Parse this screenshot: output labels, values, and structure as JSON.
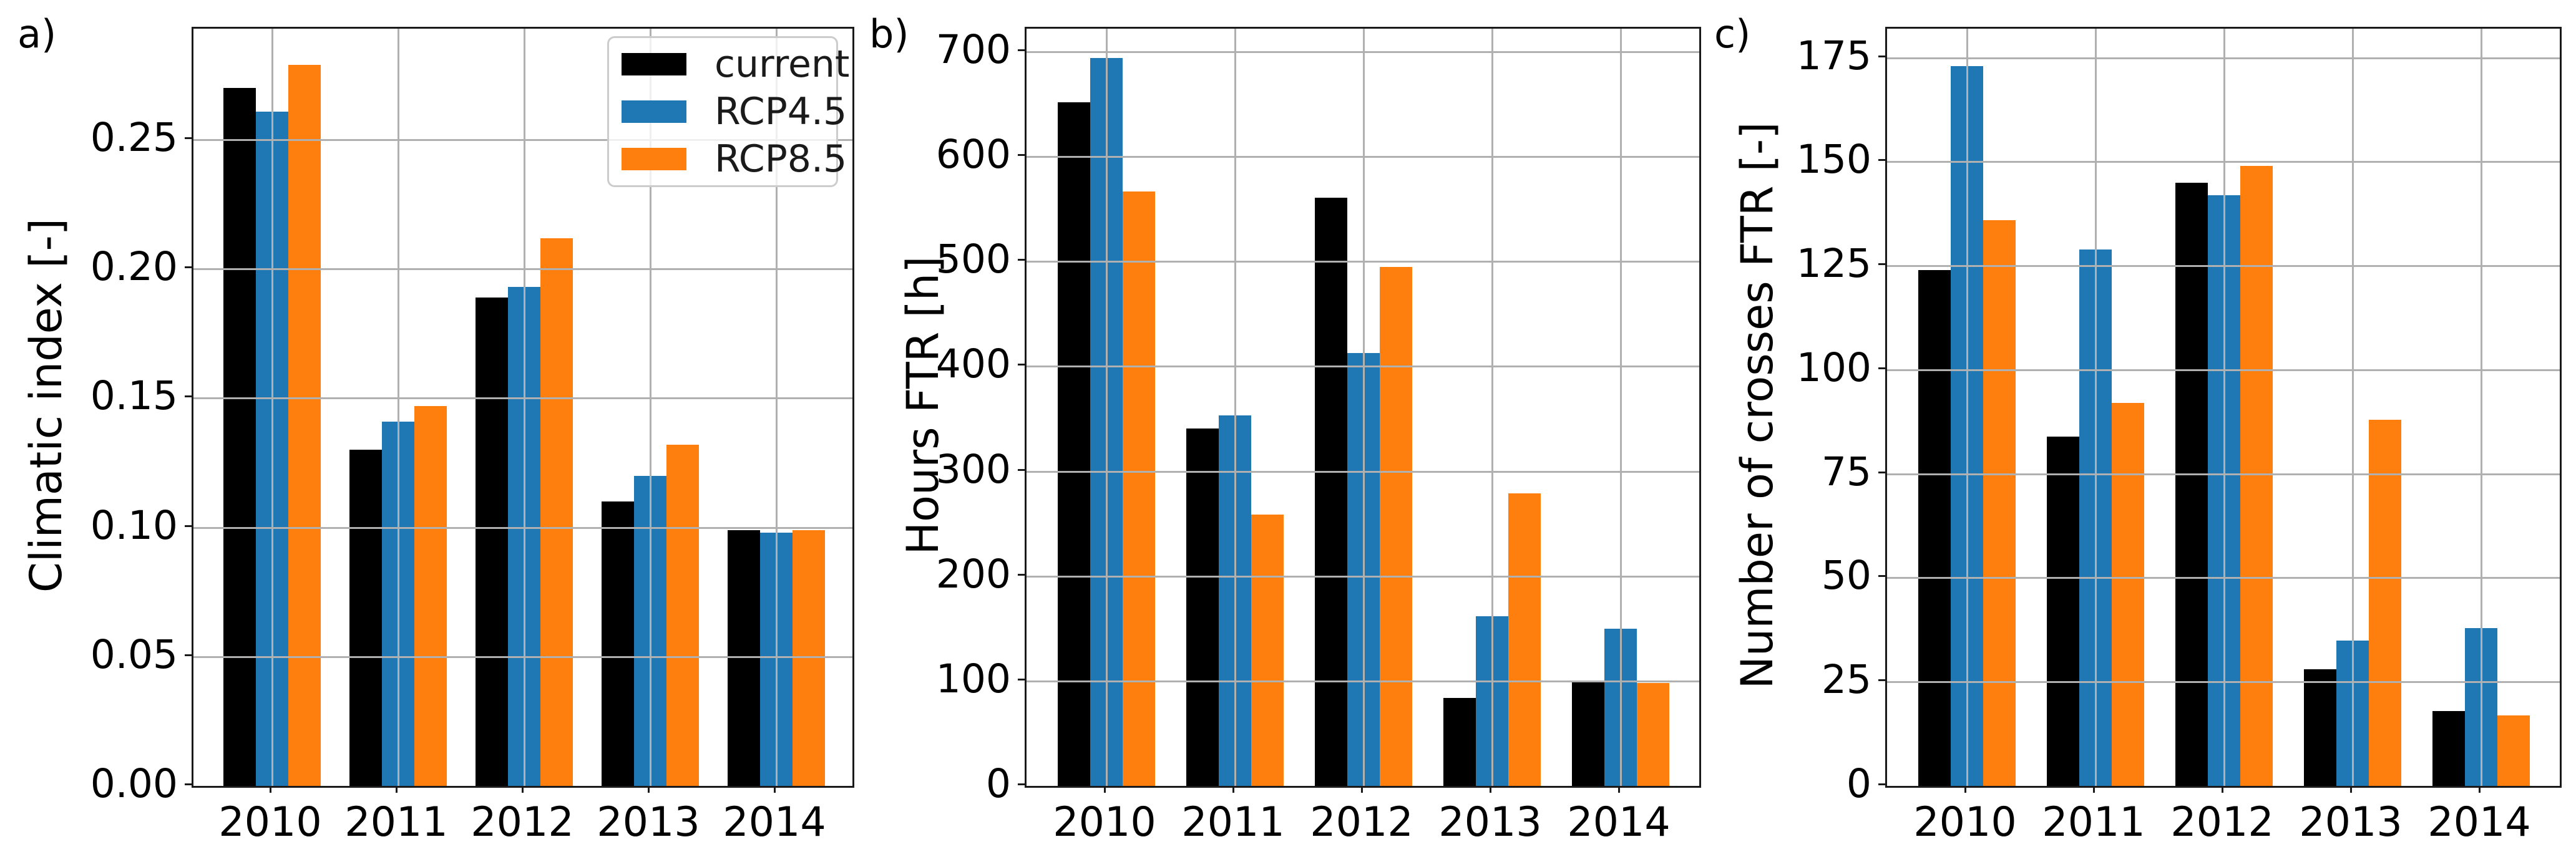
{
  "legend": {
    "items": [
      {
        "label": "current",
        "color": "#000000"
      },
      {
        "label": "RCP4.5",
        "color": "#1f77b4"
      },
      {
        "label": "RCP8.5",
        "color": "#ff7f0e"
      }
    ]
  },
  "chart_data": [
    {
      "type": "bar",
      "panel_label": "a)",
      "title": "",
      "xlabel": "",
      "ylabel": "Climatic index [-]",
      "categories": [
        "2010",
        "2011",
        "2012",
        "2013",
        "2014"
      ],
      "series": [
        {
          "name": "current",
          "color": "#000000",
          "values": [
            0.27,
            0.13,
            0.189,
            0.11,
            0.099
          ]
        },
        {
          "name": "RCP4.5",
          "color": "#1f77b4",
          "values": [
            0.261,
            0.141,
            0.193,
            0.12,
            0.098
          ]
        },
        {
          "name": "RCP8.5",
          "color": "#ff7f0e",
          "values": [
            0.279,
            0.147,
            0.212,
            0.132,
            0.099
          ]
        }
      ],
      "ylim": [
        0,
        0.293
      ],
      "yticks": [
        0,
        0.05,
        0.1,
        0.15,
        0.2,
        0.25
      ],
      "ytick_labels": [
        "0.00",
        "0.05",
        "0.10",
        "0.15",
        "0.20",
        "0.25"
      ],
      "grid": true,
      "legend_position": "upper right"
    },
    {
      "type": "bar",
      "panel_label": "b)",
      "title": "",
      "xlabel": "",
      "ylabel": "Hours FTR [h]",
      "categories": [
        "2010",
        "2011",
        "2012",
        "2013",
        "2014"
      ],
      "series": [
        {
          "name": "current",
          "color": "#000000",
          "values": [
            652,
            341,
            561,
            84,
            99
          ]
        },
        {
          "name": "RCP4.5",
          "color": "#1f77b4",
          "values": [
            694,
            353,
            413,
            162,
            150
          ]
        },
        {
          "name": "RCP8.5",
          "color": "#ff7f0e",
          "values": [
            567,
            259,
            495,
            279,
            98
          ]
        }
      ],
      "ylim": [
        0,
        722
      ],
      "yticks": [
        0,
        100,
        200,
        300,
        400,
        500,
        600,
        700
      ],
      "ytick_labels": [
        "0",
        "100",
        "200",
        "300",
        "400",
        "500",
        "600",
        "700"
      ],
      "grid": true,
      "legend_position": "none"
    },
    {
      "type": "bar",
      "panel_label": "c)",
      "title": "",
      "xlabel": "",
      "ylabel": "Number of crosses FTR [-]",
      "categories": [
        "2010",
        "2011",
        "2012",
        "2013",
        "2014"
      ],
      "series": [
        {
          "name": "current",
          "color": "#000000",
          "values": [
            124,
            84,
            145,
            28,
            18
          ]
        },
        {
          "name": "RCP4.5",
          "color": "#1f77b4",
          "values": [
            173,
            129,
            142,
            35,
            38
          ]
        },
        {
          "name": "RCP8.5",
          "color": "#ff7f0e",
          "values": [
            136,
            92,
            149,
            88,
            17
          ]
        }
      ],
      "ylim": [
        0,
        182
      ],
      "yticks": [
        0,
        25,
        50,
        75,
        100,
        125,
        150,
        175
      ],
      "ytick_labels": [
        "0",
        "25",
        "50",
        "75",
        "100",
        "125",
        "150",
        "175"
      ],
      "grid": true,
      "legend_position": "none"
    }
  ]
}
